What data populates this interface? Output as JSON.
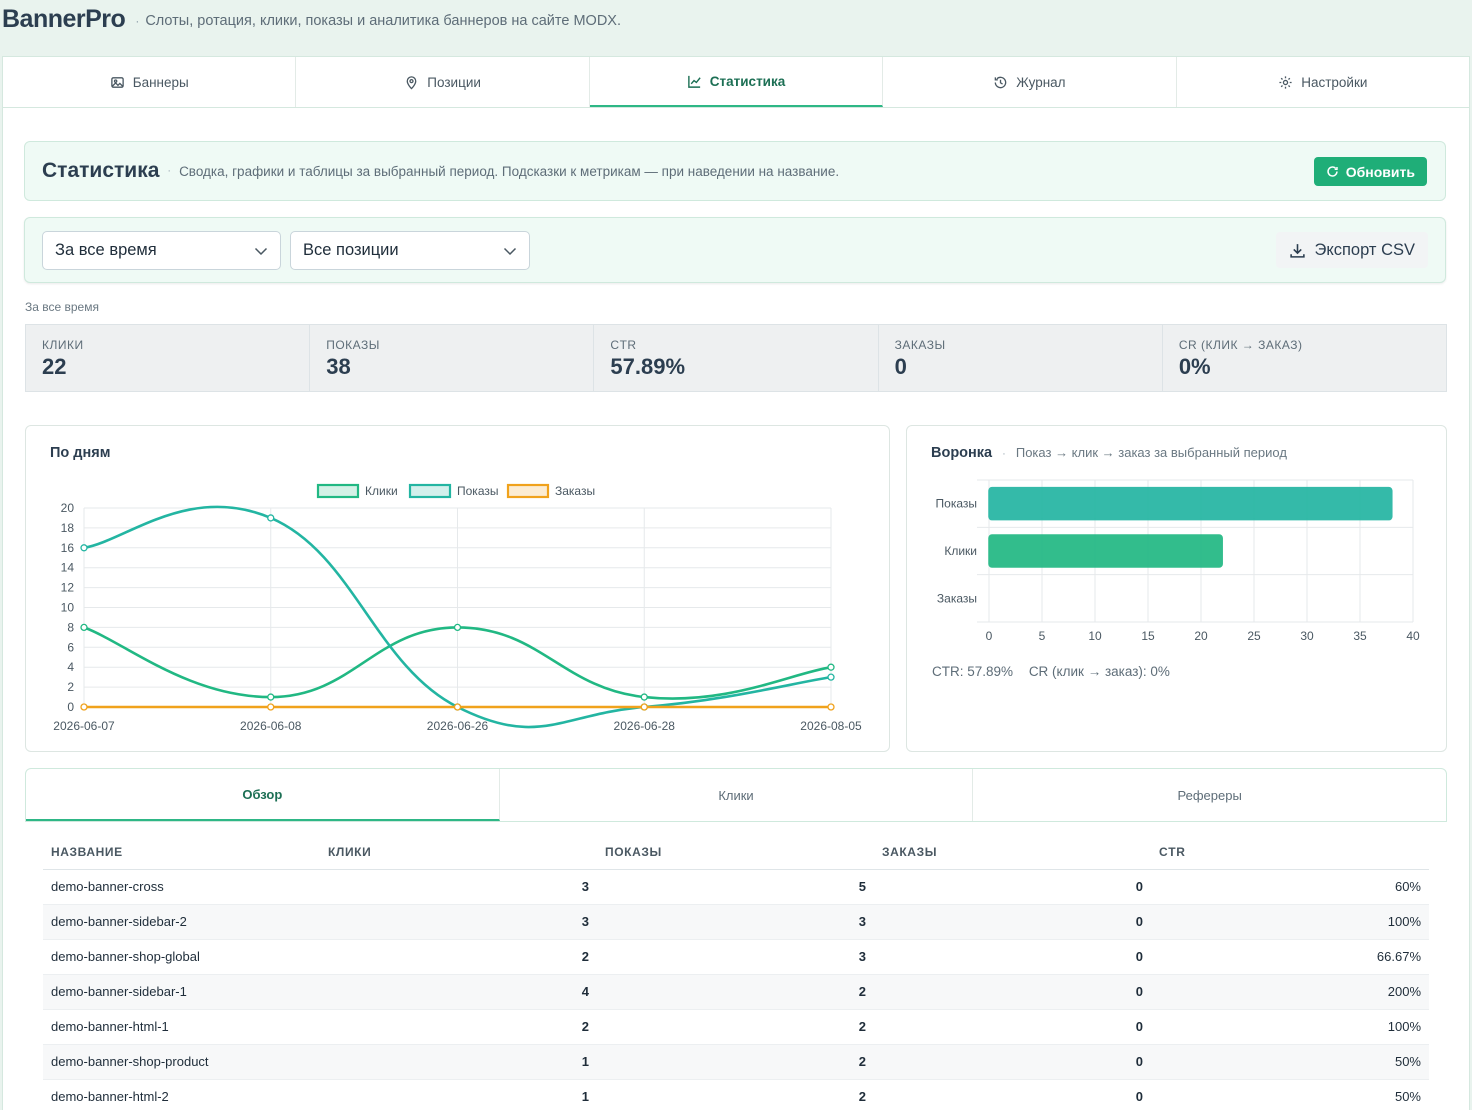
{
  "app": {
    "title": "BannerPro",
    "subtitle": "Слоты, ротация, клики, показы и аналитика баннеров на сайте MODX."
  },
  "tabs": [
    {
      "label": "Баннеры",
      "icon": "image-icon"
    },
    {
      "label": "Позиции",
      "icon": "map-pin-icon"
    },
    {
      "label": "Статистика",
      "icon": "chart-icon"
    },
    {
      "label": "Журнал",
      "icon": "history-icon"
    },
    {
      "label": "Настройки",
      "icon": "gear-icon"
    }
  ],
  "stats_header": {
    "title": "Статистика",
    "description": "Сводка, графики и таблицы за выбранный период. Подсказки к метрикам — при наведении на название.",
    "refresh_label": "Обновить"
  },
  "filters": {
    "period": "За все время",
    "position": "Все позиции",
    "export_label": "Экспорт CSV"
  },
  "period_label": "За все время",
  "kpis": [
    {
      "label": "КЛИКИ",
      "value": "22"
    },
    {
      "label": "ПОКАЗЫ",
      "value": "38"
    },
    {
      "label": "CTR",
      "value": "57.89%"
    },
    {
      "label": "ЗАКАЗЫ",
      "value": "0"
    },
    {
      "label": "CR (КЛИК → ЗАКАЗ)",
      "value": "0%"
    }
  ],
  "colors": {
    "accent": "#1fae78",
    "clicks": "#21b883",
    "views": "#23b5a2",
    "orders": "#f0a21c"
  },
  "chart_data": [
    {
      "type": "line",
      "title": "По дням",
      "x": [
        "2026-06-07",
        "2026-06-08",
        "2026-06-26",
        "2026-06-28",
        "2026-08-05"
      ],
      "series": [
        {
          "name": "Клики",
          "values": [
            8,
            1,
            8,
            1,
            4
          ]
        },
        {
          "name": "Показы",
          "values": [
            16,
            19,
            0,
            0,
            3
          ]
        },
        {
          "name": "Заказы",
          "values": [
            0,
            0,
            0,
            0,
            0
          ]
        }
      ],
      "ylim": [
        0,
        20
      ],
      "yticks": [
        0,
        2,
        4,
        6,
        8,
        10,
        12,
        14,
        16,
        18,
        20
      ],
      "legend": "top-center",
      "grid": true
    },
    {
      "type": "bar",
      "orientation": "horizontal",
      "title": "Воронка",
      "subtitle": "Показ → клик → заказ за выбранный период",
      "categories": [
        "Показы",
        "Клики",
        "Заказы"
      ],
      "values": [
        38,
        22,
        0
      ],
      "xlim": [
        0,
        40
      ],
      "xticks": [
        0,
        5,
        10,
        15,
        20,
        25,
        30,
        35,
        40
      ],
      "grid": true
    }
  ],
  "funnel_footer": {
    "ctr": "CTR: 57.89%",
    "cr": "CR (клик → заказ): 0%"
  },
  "sub_tabs": [
    "Обзор",
    "Клики",
    "Рефереры"
  ],
  "table": {
    "headers": [
      "НАЗВАНИЕ",
      "КЛИКИ",
      "ПОКАЗЫ",
      "ЗАКАЗЫ",
      "CTR"
    ],
    "rows": [
      [
        "demo-banner-cross",
        "3",
        "5",
        "0",
        "60%"
      ],
      [
        "demo-banner-sidebar-2",
        "3",
        "3",
        "0",
        "100%"
      ],
      [
        "demo-banner-shop-global",
        "2",
        "3",
        "0",
        "66.67%"
      ],
      [
        "demo-banner-sidebar-1",
        "4",
        "2",
        "0",
        "200%"
      ],
      [
        "demo-banner-html-1",
        "2",
        "2",
        "0",
        "100%"
      ],
      [
        "demo-banner-shop-product",
        "1",
        "2",
        "0",
        "50%"
      ],
      [
        "demo-banner-html-2",
        "1",
        "2",
        "0",
        "50%"
      ]
    ]
  }
}
